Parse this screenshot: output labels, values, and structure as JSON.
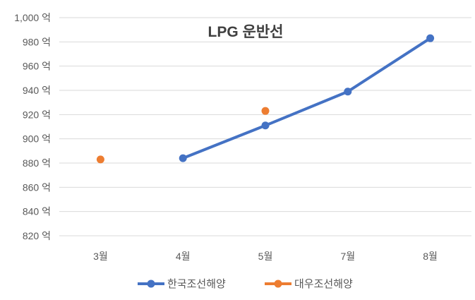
{
  "chart_data": {
    "type": "line",
    "title": "LPG 운반선",
    "categories": [
      "3월",
      "4월",
      "5월",
      "7월",
      "8월"
    ],
    "yticks": [
      "1,000 억",
      "980 억",
      "960 억",
      "940 억",
      "920 억",
      "900 억",
      "880 억",
      "860 억",
      "840 억",
      "820 억"
    ],
    "ylim": [
      820,
      1000
    ],
    "grid": true,
    "legend_position": "bottom",
    "series": [
      {
        "name": "한국조선해양",
        "values": [
          null,
          884,
          911,
          939,
          983
        ],
        "color": "#4472C4",
        "line": true
      },
      {
        "name": "대우조선해양",
        "values": [
          883,
          null,
          923,
          null,
          null
        ],
        "color": "#ED7D31",
        "line": false
      }
    ]
  }
}
